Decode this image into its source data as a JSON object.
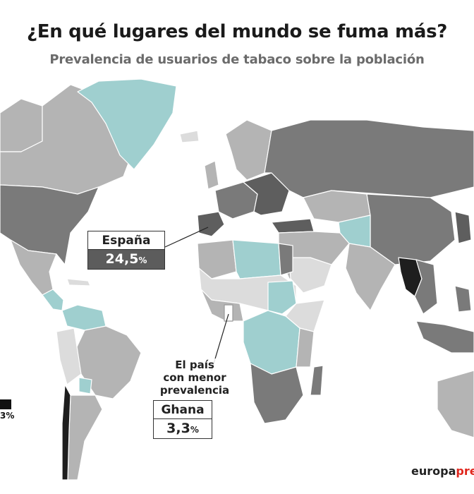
{
  "title": "¿En qué lugares del mundo se fuma más?",
  "subtitle": "Prevalencia de usuarios de tabaco sobre la población",
  "callouts": {
    "spain": {
      "country": "España",
      "value": "24,5",
      "unit": "%"
    },
    "ghana": {
      "note_lines": [
        "El país",
        "con menor",
        "prevalencia"
      ],
      "country": "Ghana",
      "value": "3,3",
      "unit": "%"
    }
  },
  "legend": {
    "visible_label": "3%"
  },
  "brand": {
    "part1": "europa",
    "part2": "pres"
  },
  "colors": {
    "lowest": "#9fcfcf",
    "light": "#dcdcdc",
    "medium": "#b4b4b4",
    "dark": "#7a7a7a",
    "darker": "#5e5e5e",
    "darkest": "#1e1e1e",
    "brand_accent": "#e0261d"
  }
}
